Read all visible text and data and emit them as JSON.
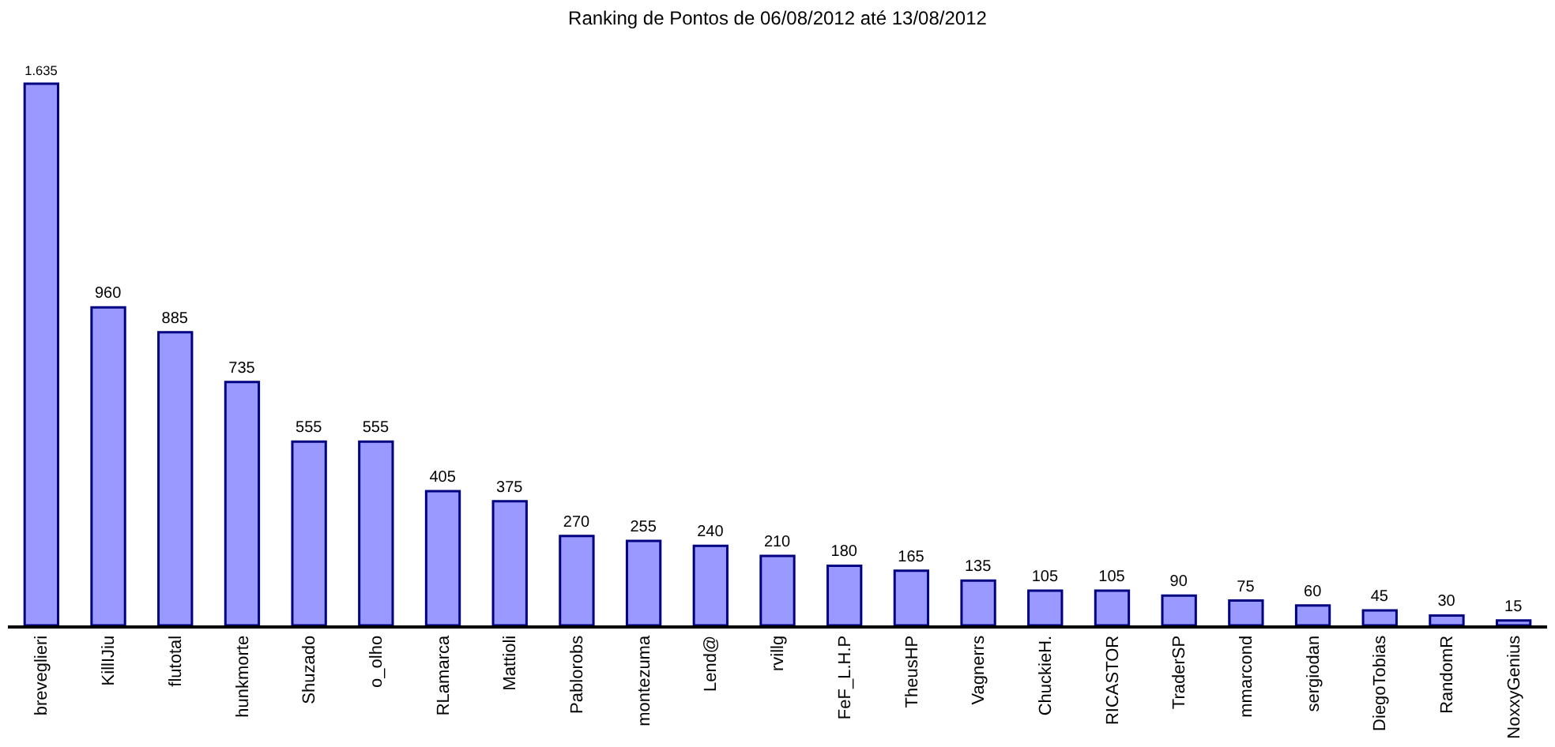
{
  "chart_data": {
    "type": "bar",
    "title": "Ranking de Pontos de 06/08/2012 até 13/08/2012",
    "categories": [
      "breveglieri",
      "KillIJiu",
      "flutotal",
      "hunkmorte",
      "Shuzado",
      "o_olho",
      "RLamarca",
      "Mattioli",
      "Pablorobs",
      "montezuma",
      "Lend@",
      "rvillg",
      "FeF_L.H.P",
      "TheusHP",
      "Vagnerrs",
      "ChuckieH.",
      "RICASTOR",
      "TraderSP",
      "mmarcond",
      "sergiodan",
      "DiegoTobias",
      "RandomR",
      "NoxxyGenius"
    ],
    "values": [
      1635,
      960,
      885,
      735,
      555,
      555,
      405,
      375,
      270,
      255,
      240,
      210,
      180,
      165,
      135,
      105,
      105,
      90,
      75,
      60,
      45,
      30,
      15
    ],
    "value_labels": [
      "1.635",
      "960",
      "885",
      "735",
      "555",
      "555",
      "405",
      "375",
      "270",
      "255",
      "240",
      "210",
      "180",
      "165",
      "135",
      "105",
      "105",
      "90",
      "75",
      "60",
      "45",
      "30",
      "15"
    ],
    "color": "#9999ff",
    "tick_labels": "x"
  }
}
